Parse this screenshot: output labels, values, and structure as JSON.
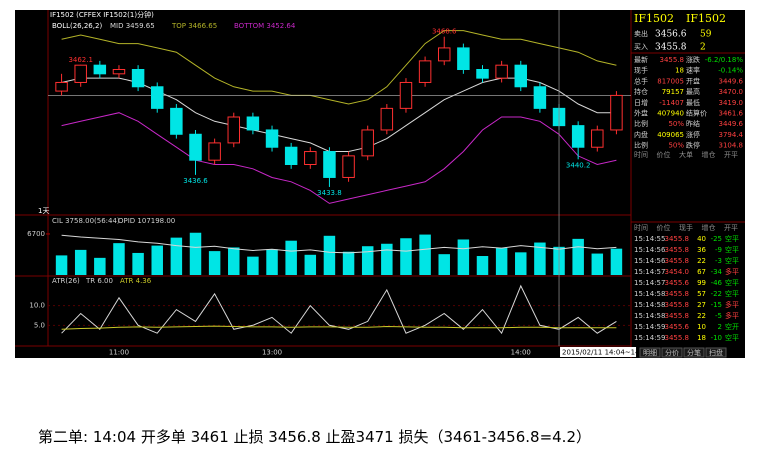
{
  "toolbar": "IF1502 (CFFEX IF1502(1)分钟)",
  "caption": "第二单: 14:04 开多单 3461 止损 3456.8 止盈3471  损失（3461-3456.8=4.2）",
  "price_panel": {
    "indicator": "BOLL(26,26,2)",
    "readouts": [
      "MID 3459.65",
      "TOP 3466.65",
      "BOTTOM 3452.64"
    ],
    "period": "1天",
    "categories": [
      null,
      null,
      null,
      "11:00",
      null,
      null,
      null,
      null,
      null,
      null,
      null,
      "13:00",
      null,
      null,
      null,
      null,
      null,
      null,
      null,
      null,
      null,
      null,
      null,
      null,
      "14:00",
      null,
      "2015/02/11 14:04~14:05",
      null,
      null,
      null
    ],
    "open": [
      3456,
      3458,
      3462,
      3460,
      3461,
      3457,
      3452,
      3446,
      3440,
      3444,
      3450,
      3447,
      3443,
      3439,
      3442,
      3436,
      3441,
      3447,
      3452,
      3458,
      3463,
      3466,
      3461,
      3459,
      3462,
      3457,
      3452,
      3448,
      3443,
      3447
    ],
    "high": [
      3460,
      3462.1,
      3463,
      3462,
      3462,
      3458,
      3453,
      3447,
      3445,
      3451,
      3451,
      3448,
      3444,
      3443,
      3443,
      3442,
      3448,
      3453,
      3459,
      3464,
      3468.6,
      3467,
      3462,
      3463,
      3463,
      3458,
      3453,
      3449,
      3448,
      3456
    ],
    "low": [
      3455,
      3457,
      3459,
      3459,
      3456,
      3451,
      3445,
      3436.6,
      3439,
      3443,
      3446,
      3442,
      3438,
      3438,
      3433.8,
      3435,
      3440,
      3446,
      3451,
      3457,
      3462,
      3460,
      3458,
      3458,
      3456,
      3451,
      3447,
      3440.2,
      3442,
      3446
    ],
    "close": [
      3458,
      3462,
      3460,
      3461,
      3457,
      3452,
      3446,
      3440,
      3444,
      3450,
      3447,
      3443,
      3439,
      3442,
      3436,
      3441,
      3447,
      3452,
      3458,
      3463,
      3466,
      3461,
      3459,
      3462,
      3457,
      3452,
      3448,
      3443,
      3447,
      3455
    ],
    "mid": [
      3458,
      3459,
      3459,
      3459,
      3458,
      3456,
      3454,
      3451,
      3449,
      3448,
      3447,
      3446,
      3445,
      3444,
      3442,
      3442,
      3443,
      3445,
      3448,
      3451,
      3454,
      3456,
      3458,
      3459,
      3459,
      3458,
      3456,
      3453,
      3451,
      3451
    ],
    "upper": [
      3468,
      3469,
      3468,
      3467,
      3467,
      3466,
      3465,
      3462,
      3459,
      3457,
      3456,
      3456,
      3455,
      3455,
      3454,
      3453,
      3454,
      3457,
      3462,
      3467,
      3470,
      3470,
      3469,
      3468,
      3468,
      3467,
      3466,
      3465,
      3463,
      3462
    ],
    "lower": [
      3448,
      3449,
      3450,
      3451,
      3449,
      3446,
      3443,
      3440,
      3439,
      3439,
      3438,
      3436,
      3435,
      3433,
      3430,
      3431,
      3432,
      3433,
      3434,
      3435,
      3438,
      3442,
      3447,
      3450,
      3450,
      3449,
      3446,
      3441,
      3439,
      3440
    ],
    "labels_high": [
      null,
      "3462.1",
      null,
      null,
      null,
      null,
      null,
      null,
      null,
      null,
      null,
      null,
      null,
      null,
      null,
      null,
      null,
      null,
      null,
      null,
      "3468.6",
      null,
      null,
      null,
      null,
      null,
      null,
      null,
      null,
      null
    ],
    "labels_low": [
      null,
      null,
      null,
      null,
      null,
      null,
      null,
      "3436.6",
      null,
      null,
      null,
      null,
      null,
      null,
      "3433.8",
      null,
      null,
      null,
      null,
      null,
      null,
      null,
      null,
      null,
      null,
      null,
      null,
      "3440.2",
      null,
      null
    ],
    "ylim": [
      3428,
      3472
    ],
    "up_color": "#ff3030",
    "down_color": "#00e5e5",
    "mid_color": "#d8d8d8",
    "upper_color": "#b4b428",
    "lower_color": "#c828c8"
  },
  "volume_panel": {
    "readouts": [
      "CIL 3758.00(56:44)",
      "OPID 107198.00"
    ],
    "values": [
      3200,
      4100,
      2800,
      5200,
      3600,
      4800,
      6100,
      6900,
      3900,
      4500,
      3000,
      4200,
      5600,
      3300,
      6400,
      3800,
      4700,
      5100,
      6000,
      6600,
      3400,
      5800,
      3100,
      4400,
      3700,
      5300,
      4600,
      5900,
      3500,
      4300
    ],
    "oi": [
      6500,
      6200,
      6000,
      5800,
      5400,
      5200,
      4800,
      4500,
      4700,
      4300,
      4000,
      4200,
      3900,
      4100,
      3700,
      3600,
      3800,
      4100,
      3900,
      4200,
      4500,
      4300,
      4600,
      4400,
      4800,
      4500,
      4200,
      4600,
      4300,
      4500
    ],
    "ylim": [
      0,
      8000
    ],
    "yticks": [
      6700
    ],
    "color": "#00e5e5",
    "oi_color": "#d8d8d8"
  },
  "atr_panel": {
    "readouts": [
      "ATR(26)",
      "TR 6.00",
      "ATR 4.36"
    ],
    "tr": [
      3,
      8,
      4,
      12,
      5,
      3,
      9,
      6,
      13,
      4,
      5,
      7,
      3,
      10,
      5,
      4,
      6,
      14,
      3,
      5,
      8,
      4,
      9,
      3,
      15,
      5,
      4,
      7,
      3,
      6
    ],
    "atr": [
      4,
      4.2,
      4.3,
      4.5,
      4.6,
      4.5,
      4.6,
      4.7,
      4.8,
      4.7,
      4.6,
      4.6,
      4.5,
      4.6,
      4.6,
      4.5,
      4.5,
      4.7,
      4.6,
      4.5,
      4.5,
      4.4,
      4.4,
      4.4,
      4.5,
      4.5,
      4.4,
      4.4,
      4.4,
      4.36
    ],
    "ylim": [
      0,
      16
    ],
    "yticks": [
      {
        "value": 10,
        "label": "10.0"
      },
      {
        "value": 5,
        "label": "5.0"
      }
    ],
    "tr_color": "#d8d8d8",
    "atr_color": "#c8c828"
  },
  "quote": {
    "header": [
      "IF1502",
      "IF1502"
    ],
    "ask": [
      "卖出",
      "3456.6",
      "59"
    ],
    "bid": [
      "买入",
      "3455.8",
      "2"
    ],
    "rows": [
      [
        "最新",
        "3455.8",
        "涨跌",
        "-6.2/0.18%"
      ],
      [
        "现手",
        "18",
        "速率",
        "-0.14%"
      ],
      [
        "总手",
        "817005",
        "开盘",
        "3449.6"
      ],
      [
        "持仓",
        "79157",
        "最高",
        "3470.0"
      ],
      [
        "日增",
        "-11407",
        "最低",
        "3419.0"
      ],
      [
        "外盘",
        "407940",
        "结算价",
        "3461.6"
      ],
      [
        "比例",
        "50%",
        "昨结",
        "3449.6"
      ],
      [
        "内盘",
        "409065",
        "涨停",
        "3794.4"
      ],
      [
        "比例",
        "50%",
        "跌停",
        "3104.8"
      ]
    ],
    "big_tabs": [
      "时间",
      "价位",
      "大单",
      "增仓",
      "开平"
    ],
    "trade_headers": [
      "时间",
      "价位",
      "现手",
      "增仓",
      "开平"
    ],
    "trades": [
      [
        "15:14:55",
        "3455.8",
        "40",
        "-25",
        "空平"
      ],
      [
        "15:14:56",
        "3455.8",
        "36",
        "-9",
        "空平"
      ],
      [
        "15:14:56",
        "3455.8",
        "22",
        "-3",
        "空平"
      ],
      [
        "15:14:57",
        "3454.0",
        "67",
        "-34",
        "多平"
      ],
      [
        "15:14:57",
        "3455.6",
        "99",
        "-46",
        "空平"
      ],
      [
        "15:14:58",
        "3455.8",
        "57",
        "-22",
        "空平"
      ],
      [
        "15:14:58",
        "3455.8",
        "27",
        "-15",
        "多平"
      ],
      [
        "15:14:58",
        "3455.8",
        "22",
        "-5",
        "多平"
      ],
      [
        "15:14:59",
        "3455.6",
        "10",
        "2",
        "空开"
      ],
      [
        "15:14:59",
        "3455.8",
        "18",
        "-10",
        "空平"
      ]
    ],
    "bottom_tabs": [
      "明细",
      "分价",
      "分笔",
      "扫盘"
    ]
  }
}
